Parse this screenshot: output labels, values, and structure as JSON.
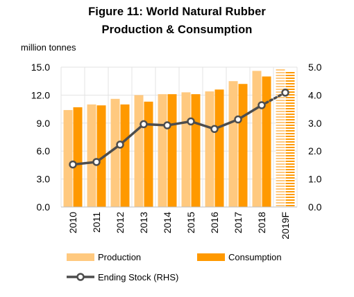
{
  "title_line1": "Figure 11: World Natural Rubber",
  "title_line2": "Production & Consumption",
  "unit_label": "million tonnes",
  "chart_data": {
    "type": "bar",
    "categories": [
      "2010",
      "2011",
      "2012",
      "2013",
      "2014",
      "2015",
      "2016",
      "2017",
      "2018",
      "2019F"
    ],
    "forecast_category": "2019F",
    "series": [
      {
        "name": "Production",
        "kind": "bar",
        "axis": "left",
        "color": "#FFC97F",
        "values": [
          10.4,
          11.0,
          11.6,
          12.0,
          12.1,
          12.3,
          12.4,
          13.5,
          14.6,
          14.9
        ]
      },
      {
        "name": "Consumption",
        "kind": "bar",
        "axis": "left",
        "color": "#FF9900",
        "values": [
          10.7,
          10.9,
          11.0,
          11.3,
          12.1,
          12.1,
          12.6,
          13.2,
          14.0,
          14.5
        ]
      },
      {
        "name": "Ending Stock (RHS)",
        "kind": "line",
        "axis": "right",
        "color": "#4D4D4D",
        "values": [
          1.52,
          1.61,
          2.23,
          2.96,
          2.92,
          3.06,
          2.79,
          3.13,
          3.64,
          4.09
        ]
      }
    ],
    "y_left": {
      "min": 0,
      "max": 15,
      "ticks": [
        0,
        3,
        6,
        9,
        12,
        15
      ],
      "tick_labels": [
        "0.0",
        "3.0",
        "6.0",
        "9.0",
        "12.0",
        "15.0"
      ]
    },
    "y_right": {
      "min": 0,
      "max": 5,
      "ticks": [
        0,
        1,
        2,
        3,
        4,
        5
      ],
      "tick_labels": [
        "0.0",
        "1.0",
        "2.0",
        "3.0",
        "4.0",
        "5.0"
      ]
    },
    "grid": true,
    "legend": "bottom"
  }
}
